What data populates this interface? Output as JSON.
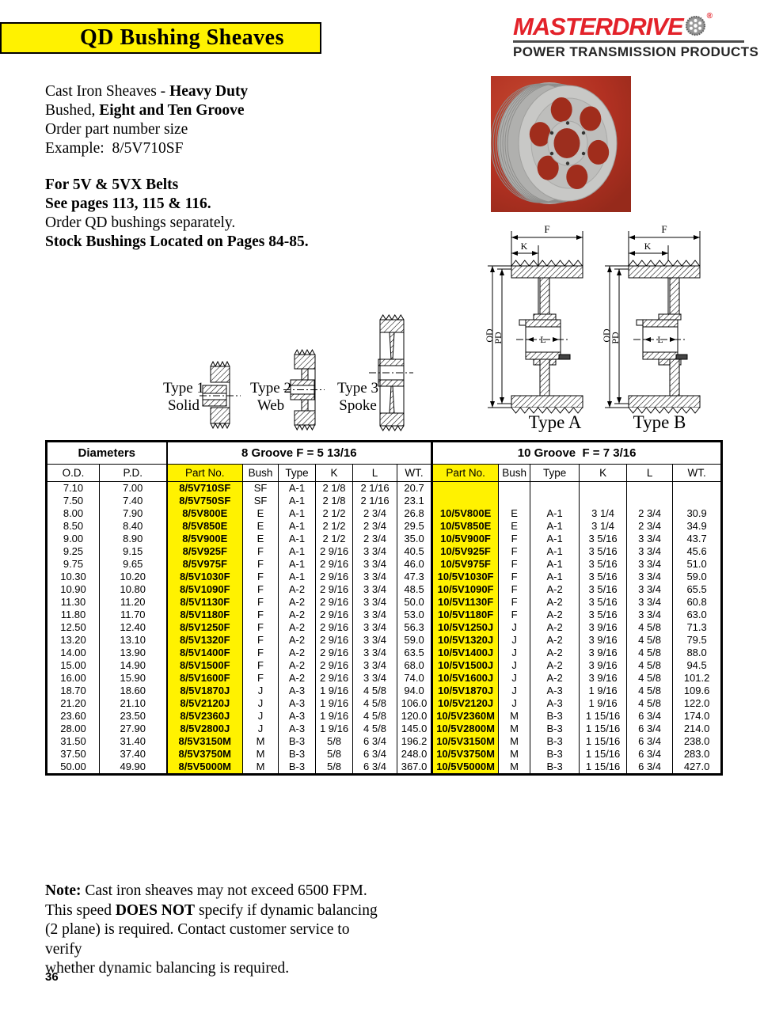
{
  "colors": {
    "highlight_yellow": "#FFF200",
    "brand_red": "#E3222A",
    "photo_background_red": "#B23122"
  },
  "header": {
    "title": "QD Bushing Sheaves",
    "brand": "MASTERDRIVE",
    "registered": "®",
    "tagline": "POWER TRANSMISSION PRODUCTS"
  },
  "intro": {
    "segments": [
      {
        "t": "Cast Iron Sheaves - "
      },
      {
        "t": "Heavy Duty",
        "b": true
      },
      {
        "t": "\nBushed, "
      },
      {
        "t": "Eight and Ten Groove",
        "b": true
      },
      {
        "t": "\nOrder part number size\nExample:  8/5V710SF"
      }
    ]
  },
  "belts": {
    "segments": [
      {
        "t": "For 5V & 5VX Belts",
        "b": true
      },
      {
        "t": "\n"
      },
      {
        "t": "See pages 113, 115 & 116.",
        "b": true
      },
      {
        "t": "\nOrder QD bushings separately.\n"
      },
      {
        "t": "Stock Bushings Located on Pages 84-85.",
        "b": true
      }
    ]
  },
  "diagrams": {
    "type1": {
      "line1": "Type 1",
      "line2": "Solid"
    },
    "type2": {
      "line1": "Type 2",
      "line2": "Web"
    },
    "type3": {
      "line1": "Type 3",
      "line2": "Spoke"
    },
    "typeA": {
      "label": "Type A"
    },
    "typeB": {
      "label": "Type B"
    },
    "dims": {
      "F": "F",
      "K": "K",
      "OD": "OD",
      "PD": "PD",
      "L": "L"
    }
  },
  "table": {
    "group_headers": [
      {
        "label": "Diameters",
        "colspan": 2
      },
      {
        "label": "8 Groove F = 5 13/16",
        "colspan": 6
      },
      {
        "label": "10 Groove  F = 7 3/16",
        "colspan": 6
      }
    ],
    "col_headers": [
      "O.D.",
      "P.D.",
      "Part No.",
      "Bush",
      "Type",
      "K",
      "L",
      "WT.",
      "Part No.",
      "Bush",
      "Type",
      "K",
      "L",
      "WT."
    ],
    "rows": [
      [
        "7.10",
        "7.00",
        "8/5V710SF",
        "SF",
        "A-1",
        "2 1/8",
        "2 1/16",
        "20.7",
        "",
        "",
        "",
        "",
        "",
        ""
      ],
      [
        "7.50",
        "7.40",
        "8/5V750SF",
        "SF",
        "A-1",
        "2 1/8",
        "2 1/16",
        "23.1",
        "",
        "",
        "",
        "",
        "",
        ""
      ],
      [
        "8.00",
        "7.90",
        "8/5V800E",
        "E",
        "A-1",
        "2 1/2",
        "2 3/4",
        "26.8",
        "10/5V800E",
        "E",
        "A-1",
        "3 1/4",
        "2 3/4",
        "30.9"
      ],
      [
        "8.50",
        "8.40",
        "8/5V850E",
        "E",
        "A-1",
        "2 1/2",
        "2 3/4",
        "29.5",
        "10/5V850E",
        "E",
        "A-1",
        "3 1/4",
        "2 3/4",
        "34.9"
      ],
      [
        "9.00",
        "8.90",
        "8/5V900E",
        "E",
        "A-1",
        "2 1/2",
        "2 3/4",
        "35.0",
        "10/5V900F",
        "F",
        "A-1",
        "3 5/16",
        "3 3/4",
        "43.7"
      ],
      [
        "9.25",
        "9.15",
        "8/5V925F",
        "F",
        "A-1",
        "2 9/16",
        "3 3/4",
        "40.5",
        "10/5V925F",
        "F",
        "A-1",
        "3 5/16",
        "3 3/4",
        "45.6"
      ],
      [
        "9.75",
        "9.65",
        "8/5V975F",
        "F",
        "A-1",
        "2 9/16",
        "3 3/4",
        "46.0",
        "10/5V975F",
        "F",
        "A-1",
        "3 5/16",
        "3 3/4",
        "51.0"
      ],
      [
        "10.30",
        "10.20",
        "8/5V1030F",
        "F",
        "A-1",
        "2 9/16",
        "3 3/4",
        "47.3",
        "10/5V1030F",
        "F",
        "A-1",
        "3 5/16",
        "3 3/4",
        "59.0"
      ],
      [
        "10.90",
        "10.80",
        "8/5V1090F",
        "F",
        "A-2",
        "2 9/16",
        "3 3/4",
        "48.5",
        "10/5V1090F",
        "F",
        "A-2",
        "3 5/16",
        "3 3/4",
        "65.5"
      ],
      [
        "11.30",
        "11.20",
        "8/5V1130F",
        "F",
        "A-2",
        "2 9/16",
        "3 3/4",
        "50.0",
        "10/5V1130F",
        "F",
        "A-2",
        "3 5/16",
        "3 3/4",
        "60.8"
      ],
      [
        "11.80",
        "11.70",
        "8/5V1180F",
        "F",
        "A-2",
        "2 9/16",
        "3 3/4",
        "53.0",
        "10/5V1180F",
        "F",
        "A-2",
        "3 5/16",
        "3 3/4",
        "63.0"
      ],
      [
        "12.50",
        "12.40",
        "8/5V1250F",
        "F",
        "A-2",
        "2 9/16",
        "3 3/4",
        "56.3",
        "10/5V1250J",
        "J",
        "A-2",
        "3 9/16",
        "4 5/8",
        "71.3"
      ],
      [
        "13.20",
        "13.10",
        "8/5V1320F",
        "F",
        "A-2",
        "2 9/16",
        "3 3/4",
        "59.0",
        "10/5V1320J",
        "J",
        "A-2",
        "3 9/16",
        "4 5/8",
        "79.5"
      ],
      [
        "14.00",
        "13.90",
        "8/5V1400F",
        "F",
        "A-2",
        "2 9/16",
        "3 3/4",
        "63.5",
        "10/5V1400J",
        "J",
        "A-2",
        "3 9/16",
        "4 5/8",
        "88.0"
      ],
      [
        "15.00",
        "14.90",
        "8/5V1500F",
        "F",
        "A-2",
        "2 9/16",
        "3 3/4",
        "68.0",
        "10/5V1500J",
        "J",
        "A-2",
        "3 9/16",
        "4 5/8",
        "94.5"
      ],
      [
        "16.00",
        "15.90",
        "8/5V1600F",
        "F",
        "A-2",
        "2 9/16",
        "3 3/4",
        "74.0",
        "10/5V1600J",
        "J",
        "A-2",
        "3 9/16",
        "4 5/8",
        "101.2"
      ],
      [
        "18.70",
        "18.60",
        "8/5V1870J",
        "J",
        "A-3",
        "1 9/16",
        "4 5/8",
        "94.0",
        "10/5V1870J",
        "J",
        "A-3",
        "1 9/16",
        "4 5/8",
        "109.6"
      ],
      [
        "21.20",
        "21.10",
        "8/5V2120J",
        "J",
        "A-3",
        "1 9/16",
        "4 5/8",
        "106.0",
        "10/5V2120J",
        "J",
        "A-3",
        "1 9/16",
        "4 5/8",
        "122.0"
      ],
      [
        "23.60",
        "23.50",
        "8/5V2360J",
        "J",
        "A-3",
        "1 9/16",
        "4 5/8",
        "120.0",
        "10/5V2360M",
        "M",
        "B-3",
        "1 15/16",
        "6 3/4",
        "174.0"
      ],
      [
        "28.00",
        "27.90",
        "8/5V2800J",
        "J",
        "A-3",
        "1 9/16",
        "4 5/8",
        "145.0",
        "10/5V2800M",
        "M",
        "B-3",
        "1 15/16",
        "6 3/4",
        "214.0"
      ],
      [
        "31.50",
        "31.40",
        "8/5V3150M",
        "M",
        "B-3",
        "5/8",
        "6 3/4",
        "196.2",
        "10/5V3150M",
        "M",
        "B-3",
        "1 15/16",
        "6 3/4",
        "238.0"
      ],
      [
        "37.50",
        "37.40",
        "8/5V3750M",
        "M",
        "B-3",
        "5/8",
        "6 3/4",
        "248.0",
        "10/5V3750M",
        "M",
        "B-3",
        "1 15/16",
        "6 3/4",
        "283.0"
      ],
      [
        "50.00",
        "49.90",
        "8/5V5000M",
        "M",
        "B-3",
        "5/8",
        "6 3/4",
        "367.0",
        "10/5V5000M",
        "M",
        "B-3",
        "1 15/16",
        "6 3/4",
        "427.0"
      ]
    ]
  },
  "note": {
    "segments": [
      {
        "t": "Note:",
        "b": true
      },
      {
        "t": " Cast iron sheaves may not exceed 6500 FPM.\nThis speed "
      },
      {
        "t": "DOES NOT",
        "b": true
      },
      {
        "t": " specify if dynamic balancing\n(2 plane) is required. Contact customer service to verify\nwhether dynamic balancing is required."
      }
    ]
  },
  "footer": {
    "page_number": "36"
  }
}
